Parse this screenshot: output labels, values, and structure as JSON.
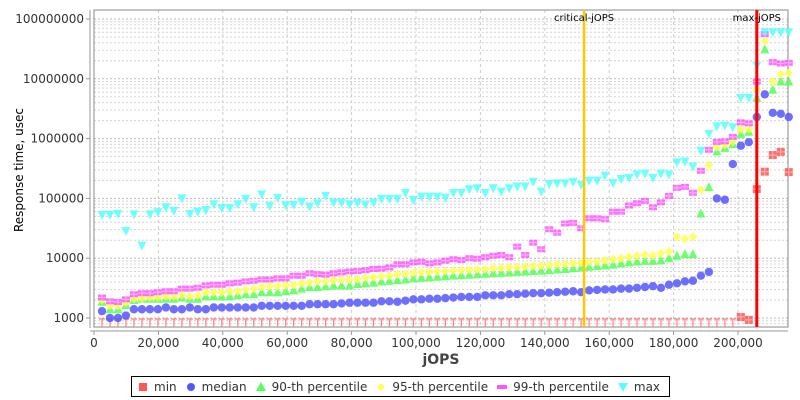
{
  "chart_data": {
    "type": "scatter",
    "xlabel": "jOPS",
    "ylabel": "Response time, usec",
    "xlim": [
      0,
      215500
    ],
    "ylim": [
      680,
      140000000
    ],
    "yscale": "log",
    "grid": true,
    "legend_placement": "bottom",
    "x_ticks": [
      "0",
      "20,000",
      "40,000",
      "60,000",
      "80,000",
      "100,000",
      "120,000",
      "140,000",
      "160,000",
      "180,000",
      "200,000"
    ],
    "x_tick_values": [
      0,
      20000,
      40000,
      60000,
      80000,
      100000,
      120000,
      140000,
      160000,
      180000,
      200000
    ],
    "y_ticks": [
      "1000",
      "10000",
      "100000",
      "1000000",
      "10000000",
      "100000000"
    ],
    "y_tick_values": [
      1000,
      10000,
      100000,
      1000000,
      10000000,
      100000000
    ],
    "markers": [
      {
        "label": "critical-jOPS",
        "x": 152200,
        "color": "#ffc800"
      },
      {
        "label": "max-jOPS",
        "x": 205840,
        "color": "#ff0000"
      }
    ],
    "x_step": 2480,
    "x_count": 87,
    "series": [
      {
        "name": "min",
        "color": "#ff5555",
        "shape": "square",
        "note_below_range": "null = below axis minimum",
        "values": [
          null,
          null,
          null,
          null,
          null,
          null,
          null,
          null,
          null,
          null,
          null,
          null,
          null,
          null,
          null,
          null,
          null,
          null,
          null,
          null,
          null,
          null,
          null,
          null,
          null,
          null,
          null,
          null,
          null,
          null,
          null,
          null,
          null,
          null,
          null,
          null,
          null,
          null,
          null,
          null,
          null,
          null,
          null,
          null,
          null,
          null,
          null,
          null,
          null,
          null,
          null,
          null,
          null,
          null,
          null,
          null,
          null,
          null,
          null,
          null,
          null,
          null,
          null,
          null,
          null,
          null,
          null,
          null,
          null,
          null,
          null,
          null,
          null,
          null,
          null,
          null,
          null,
          null,
          null,
          null,
          1040,
          930,
          143000,
          280000,
          530000,
          600000,
          275000
        ]
      },
      {
        "name": "median",
        "color": "#5555ff",
        "shape": "circle",
        "values": [
          1300,
          1000,
          1000,
          1100,
          1400,
          1400,
          1400,
          1400,
          1500,
          1400,
          1400,
          1500,
          1400,
          1400,
          1500,
          1500,
          1500,
          1500,
          1500,
          1500,
          1600,
          1600,
          1600,
          1600,
          1600,
          1600,
          1700,
          1700,
          1700,
          1700,
          1750,
          1800,
          1800,
          1800,
          1800,
          1900,
          1900,
          1870,
          1950,
          2050,
          2050,
          2100,
          2100,
          2150,
          2200,
          2250,
          2250,
          2250,
          2400,
          2400,
          2400,
          2500,
          2500,
          2550,
          2600,
          2600,
          2650,
          2700,
          2750,
          2800,
          2700,
          2900,
          2950,
          3000,
          3000,
          3100,
          3100,
          3200,
          3300,
          3400,
          3200,
          3600,
          3800,
          4100,
          4200,
          5100,
          5900,
          100000,
          95000,
          375000,
          760000,
          870000,
          2300000,
          5500000,
          2700000,
          2600000,
          2300000
        ]
      },
      {
        "name": "90-th percentile",
        "color": "#55ff55",
        "shape": "triangle-up",
        "values": [
          1870,
          1400,
          1400,
          1650,
          2000,
          2100,
          2100,
          2100,
          2100,
          2100,
          2200,
          2100,
          2100,
          2300,
          2300,
          2300,
          2300,
          2400,
          2500,
          2500,
          2700,
          2700,
          2700,
          2800,
          2900,
          3100,
          3300,
          3300,
          3400,
          3500,
          3500,
          3500,
          3700,
          3800,
          3900,
          4100,
          4200,
          4300,
          4400,
          4600,
          4700,
          4800,
          4900,
          5000,
          5100,
          5200,
          5300,
          5400,
          5500,
          5600,
          5700,
          5800,
          5900,
          6000,
          6100,
          6200,
          6300,
          6500,
          6600,
          6800,
          7000,
          7200,
          7400,
          7600,
          7800,
          8200,
          8500,
          8800,
          9000,
          9000,
          9200,
          10000,
          11000,
          11700,
          11700,
          56000,
          155000,
          610000,
          700000,
          810000,
          1200000,
          1300000,
          4800000,
          31000000,
          6600000,
          9000000,
          9000000
        ]
      },
      {
        "name": "95-th percentile",
        "color": "#ffff55",
        "shape": "diamond",
        "values": [
          2000,
          1600,
          1600,
          1800,
          2100,
          2100,
          2200,
          2200,
          2300,
          2300,
          2400,
          2300,
          2400,
          2700,
          2700,
          2700,
          2800,
          2800,
          3000,
          3100,
          3300,
          3400,
          3400,
          3500,
          3600,
          3800,
          3900,
          4100,
          4100,
          4300,
          4400,
          4400,
          4500,
          4700,
          4800,
          5000,
          5100,
          5400,
          5500,
          5700,
          5800,
          5900,
          6000,
          6100,
          6200,
          6300,
          6400,
          6500,
          6600,
          6800,
          6900,
          7000,
          7100,
          7300,
          7400,
          7500,
          7700,
          7900,
          8000,
          8200,
          8300,
          8700,
          8800,
          9200,
          9600,
          10000,
          10500,
          11000,
          11500,
          11000,
          12000,
          13000,
          22800,
          21000,
          22800,
          138000,
          360000,
          720000,
          790000,
          880000,
          1440000,
          1440000,
          6500000,
          43000000,
          9100000,
          12000000,
          12500000
        ]
      },
      {
        "name": "99-th percentile",
        "color": "#ff55ff",
        "shape": "rect",
        "values": [
          2200,
          1900,
          1850,
          2050,
          2500,
          2600,
          2600,
          2700,
          2800,
          2800,
          3100,
          3100,
          3200,
          3500,
          3600,
          3600,
          3800,
          3900,
          4100,
          4200,
          4400,
          4400,
          4600,
          4600,
          5100,
          5100,
          5600,
          5400,
          5300,
          5600,
          5800,
          6000,
          6100,
          6300,
          6600,
          6700,
          7000,
          7900,
          7900,
          8500,
          8700,
          8200,
          8500,
          9100,
          9600,
          9300,
          10000,
          9800,
          10400,
          11000,
          11300,
          10400,
          15600,
          11300,
          18200,
          14100,
          30500,
          26700,
          38000,
          39000,
          31600,
          46500,
          46500,
          45000,
          60000,
          60000,
          76000,
          83000,
          91000,
          71000,
          86000,
          110000,
          150000,
          156000,
          124000,
          290000,
          650000,
          880000,
          900000,
          1070000,
          1870000,
          1800000,
          9000000,
          56000000,
          19000000,
          18000000,
          18500000
        ]
      },
      {
        "name": "max",
        "color": "#55ffff",
        "shape": "triangle-down",
        "values": [
          53000,
          53000,
          55000,
          28500,
          54000,
          16200,
          54000,
          59000,
          71000,
          62000,
          100000,
          55000,
          60000,
          64000,
          80000,
          69000,
          69000,
          80000,
          98000,
          71000,
          117000,
          75000,
          102000,
          77000,
          78000,
          88000,
          73000,
          83000,
          110000,
          85000,
          85000,
          80000,
          84000,
          79000,
          85000,
          98000,
          98000,
          98000,
          123000,
          94000,
          107000,
          107000,
          107000,
          103000,
          123000,
          123000,
          142000,
          148000,
          123000,
          148000,
          130000,
          148000,
          158000,
          158000,
          190000,
          130000,
          174000,
          178000,
          178000,
          190000,
          168000,
          197000,
          197000,
          240000,
          180000,
          211000,
          220000,
          252000,
          260000,
          220000,
          260000,
          250000,
          400000,
          415000,
          340000,
          630000,
          1200000,
          1600000,
          1650000,
          1550000,
          4800000,
          4800000,
          16500000,
          60000000,
          60000000,
          60000000,
          60000000
        ]
      }
    ]
  }
}
